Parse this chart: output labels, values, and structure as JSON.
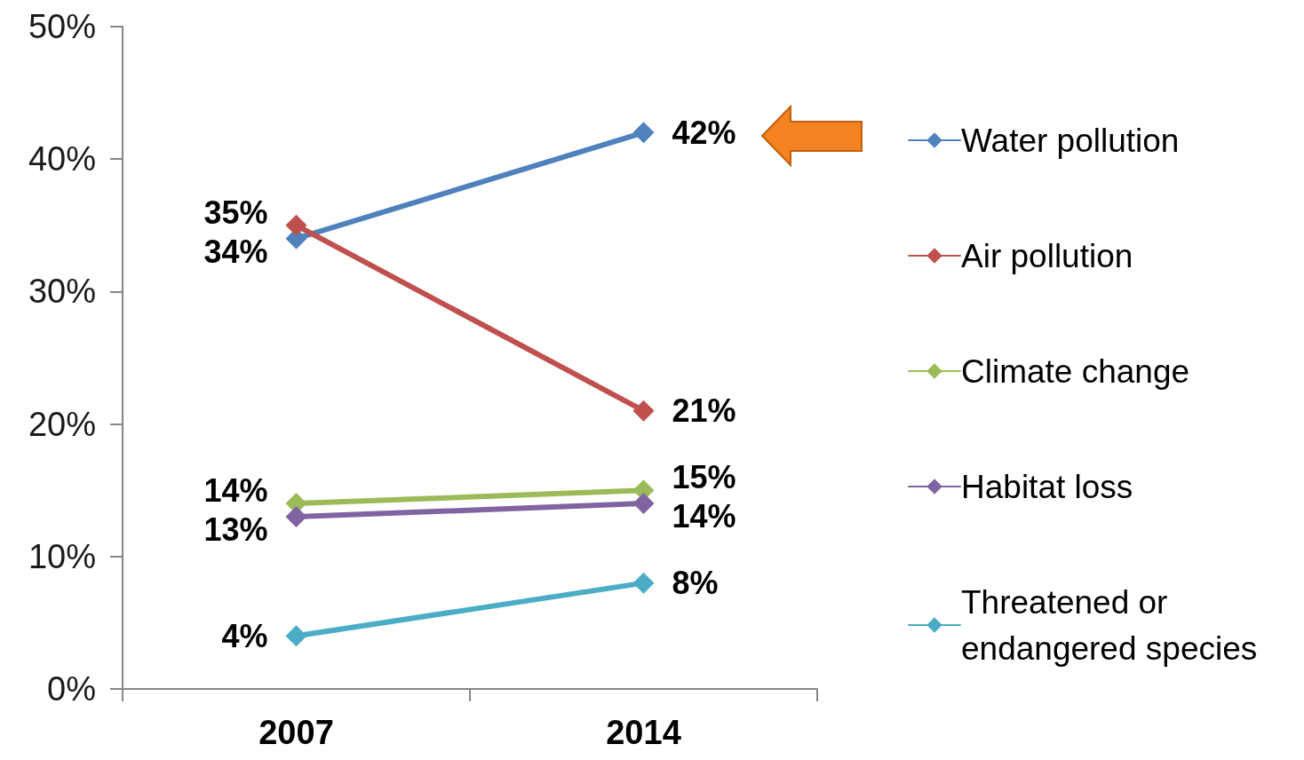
{
  "chart_data": {
    "type": "line",
    "categories": [
      "2007",
      "2014"
    ],
    "series": [
      {
        "name": "Water pollution",
        "color": "#4f81bd",
        "values": [
          34,
          42
        ],
        "value_labels": [
          "34%",
          "42%"
        ]
      },
      {
        "name": "Air pollution",
        "color": "#c0504d",
        "values": [
          35,
          21
        ],
        "value_labels": [
          "35%",
          "21%"
        ]
      },
      {
        "name": "Climate change",
        "color": "#9bbb59",
        "values": [
          14,
          15
        ],
        "value_labels": [
          "14%",
          "15%"
        ]
      },
      {
        "name": "Habitat loss",
        "color": "#8064a2",
        "values": [
          13,
          14
        ],
        "value_labels": [
          "13%",
          "14%"
        ]
      },
      {
        "name": "Threatened or endangered species",
        "color": "#4bacc6",
        "values": [
          4,
          8
        ],
        "value_labels": [
          "4%",
          "8%"
        ]
      }
    ],
    "ylim": [
      0,
      50
    ],
    "yticks": [
      {
        "value": 0,
        "label": "0%"
      },
      {
        "value": 10,
        "label": "10%"
      },
      {
        "value": 20,
        "label": "20%"
      },
      {
        "value": 30,
        "label": "30%"
      },
      {
        "value": 40,
        "label": "40%"
      },
      {
        "value": 50,
        "label": "50%"
      }
    ],
    "grid": false,
    "legend": "right",
    "marker": "diamond",
    "line_style": "solid"
  }
}
